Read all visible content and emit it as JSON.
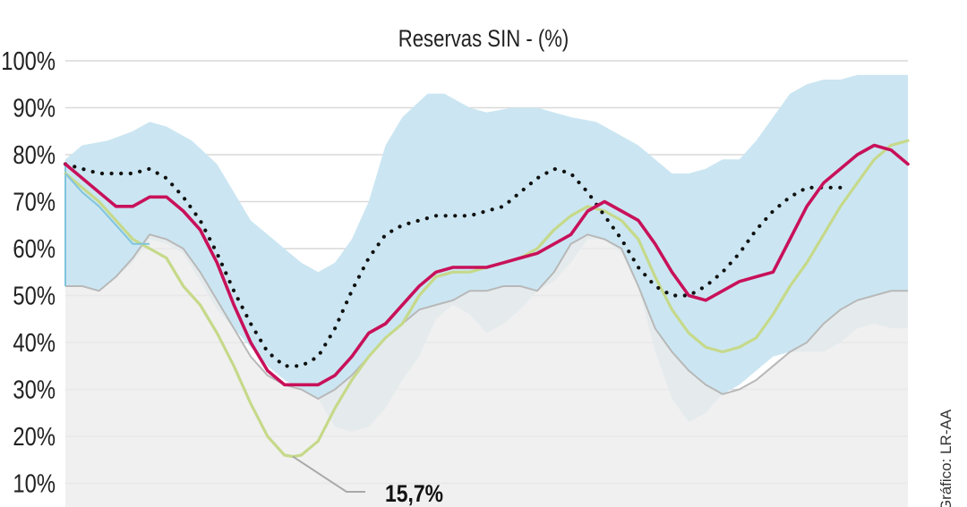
{
  "chart_data": {
    "type": "area",
    "title": "Reservas SIN - (%)",
    "xlabel": "",
    "ylabel": "",
    "ylim": [
      0,
      100
    ],
    "y_ticks": [
      10,
      20,
      30,
      40,
      50,
      60,
      70,
      80,
      90,
      100
    ],
    "y_tick_labels": [
      "10%",
      "20%",
      "30%",
      "40%",
      "50%",
      "60%",
      "70%",
      "80%",
      "90%",
      "100%"
    ],
    "grid": true,
    "x_range": [
      0,
      100
    ],
    "annotation": {
      "text": "15,7%",
      "x": 27,
      "y": 15.7
    },
    "source_note": "Gráfico: LR-AA",
    "bands": [
      {
        "role": "historical-max-min-range",
        "color": "#cbe6f2",
        "upper": [
          [
            0,
            79
          ],
          [
            2,
            82
          ],
          [
            5,
            83
          ],
          [
            8,
            85
          ],
          [
            10,
            87
          ],
          [
            12,
            86
          ],
          [
            15,
            83
          ],
          [
            18,
            78
          ],
          [
            22,
            66
          ],
          [
            26,
            60
          ],
          [
            28,
            57
          ],
          [
            30,
            55
          ],
          [
            32,
            57
          ],
          [
            34,
            62
          ],
          [
            36,
            70
          ],
          [
            38,
            82
          ],
          [
            40,
            88
          ],
          [
            43,
            93
          ],
          [
            45,
            93
          ],
          [
            48,
            90
          ],
          [
            50,
            89
          ],
          [
            53,
            90
          ],
          [
            56,
            90
          ],
          [
            58,
            89
          ],
          [
            60,
            88
          ],
          [
            63,
            87
          ],
          [
            66,
            84
          ],
          [
            68,
            82
          ],
          [
            70,
            79
          ],
          [
            72,
            76
          ],
          [
            74,
            76
          ],
          [
            76,
            77
          ],
          [
            78,
            79
          ],
          [
            80,
            79
          ],
          [
            82,
            83
          ],
          [
            84,
            88
          ],
          [
            86,
            93
          ],
          [
            88,
            95
          ],
          [
            90,
            96
          ],
          [
            92,
            96
          ],
          [
            94,
            97
          ],
          [
            96,
            97
          ],
          [
            98,
            97
          ],
          [
            100,
            97
          ]
        ],
        "lower": [
          [
            0,
            52
          ],
          [
            2,
            52
          ],
          [
            4,
            51
          ],
          [
            6,
            54
          ],
          [
            8,
            57
          ],
          [
            10,
            62
          ],
          [
            12,
            61
          ],
          [
            14,
            59
          ],
          [
            16,
            53
          ],
          [
            18,
            47
          ],
          [
            20,
            43
          ],
          [
            22,
            39
          ],
          [
            24,
            35
          ],
          [
            26,
            32
          ],
          [
            28,
            30
          ],
          [
            30,
            28
          ],
          [
            32,
            22
          ],
          [
            34,
            21
          ],
          [
            36,
            22
          ],
          [
            38,
            26
          ],
          [
            40,
            32
          ],
          [
            42,
            37
          ],
          [
            44,
            45
          ],
          [
            46,
            48
          ],
          [
            48,
            46
          ],
          [
            50,
            42
          ],
          [
            52,
            44
          ],
          [
            54,
            47
          ],
          [
            56,
            51
          ],
          [
            58,
            53
          ],
          [
            60,
            57
          ],
          [
            62,
            62
          ],
          [
            64,
            62
          ],
          [
            66,
            59
          ],
          [
            68,
            52
          ],
          [
            70,
            38
          ],
          [
            72,
            28
          ],
          [
            74,
            23
          ],
          [
            76,
            25
          ],
          [
            78,
            29
          ],
          [
            80,
            31
          ],
          [
            82,
            34
          ],
          [
            84,
            37
          ],
          [
            86,
            38
          ],
          [
            88,
            38
          ],
          [
            90,
            38
          ],
          [
            92,
            40
          ],
          [
            94,
            43
          ],
          [
            96,
            44
          ],
          [
            98,
            43
          ],
          [
            100,
            43
          ]
        ]
      },
      {
        "role": "historical-minimum",
        "color": "#ececec",
        "stroke": "#b8b8b8",
        "values": [
          [
            0,
            52
          ],
          [
            2,
            52
          ],
          [
            4,
            51
          ],
          [
            6,
            54
          ],
          [
            8,
            58
          ],
          [
            10,
            63
          ],
          [
            12,
            62
          ],
          [
            14,
            60
          ],
          [
            16,
            55
          ],
          [
            18,
            49
          ],
          [
            20,
            43
          ],
          [
            22,
            37
          ],
          [
            24,
            33
          ],
          [
            26,
            31
          ],
          [
            28,
            30
          ],
          [
            30,
            28
          ],
          [
            32,
            30
          ],
          [
            34,
            33
          ],
          [
            36,
            37
          ],
          [
            38,
            41
          ],
          [
            40,
            44
          ],
          [
            42,
            47
          ],
          [
            44,
            48
          ],
          [
            46,
            49
          ],
          [
            48,
            51
          ],
          [
            50,
            51
          ],
          [
            52,
            52
          ],
          [
            54,
            52
          ],
          [
            56,
            51
          ],
          [
            58,
            55
          ],
          [
            60,
            61
          ],
          [
            62,
            63
          ],
          [
            64,
            62
          ],
          [
            66,
            60
          ],
          [
            68,
            52
          ],
          [
            70,
            43
          ],
          [
            72,
            38
          ],
          [
            74,
            34
          ],
          [
            76,
            31
          ],
          [
            78,
            29
          ],
          [
            80,
            30
          ],
          [
            82,
            32
          ],
          [
            84,
            35
          ],
          [
            86,
            38
          ],
          [
            88,
            40
          ],
          [
            90,
            44
          ],
          [
            92,
            47
          ],
          [
            94,
            49
          ],
          [
            96,
            50
          ],
          [
            98,
            51
          ],
          [
            100,
            51
          ]
        ]
      }
    ],
    "series": [
      {
        "role": "current-year",
        "color": "#c8115a",
        "style": "solid",
        "values": [
          [
            0,
            78
          ],
          [
            2,
            75
          ],
          [
            4,
            72
          ],
          [
            6,
            69
          ],
          [
            8,
            69
          ],
          [
            10,
            71
          ],
          [
            12,
            71
          ],
          [
            14,
            68
          ],
          [
            16,
            64
          ],
          [
            18,
            57
          ],
          [
            20,
            48
          ],
          [
            22,
            40
          ],
          [
            24,
            34
          ],
          [
            26,
            31
          ],
          [
            28,
            31
          ],
          [
            30,
            31
          ],
          [
            32,
            33
          ],
          [
            34,
            37
          ],
          [
            36,
            42
          ],
          [
            38,
            44
          ],
          [
            40,
            48
          ],
          [
            42,
            52
          ],
          [
            44,
            55
          ],
          [
            46,
            56
          ],
          [
            48,
            56
          ],
          [
            50,
            56
          ],
          [
            52,
            57
          ],
          [
            54,
            58
          ],
          [
            56,
            59
          ],
          [
            58,
            61
          ],
          [
            60,
            63
          ],
          [
            62,
            68
          ],
          [
            64,
            70
          ],
          [
            66,
            68
          ],
          [
            68,
            66
          ],
          [
            70,
            61
          ],
          [
            72,
            55
          ],
          [
            74,
            50
          ],
          [
            76,
            49
          ],
          [
            78,
            51
          ],
          [
            80,
            53
          ],
          [
            82,
            54
          ],
          [
            84,
            55
          ],
          [
            86,
            62
          ],
          [
            88,
            69
          ],
          [
            90,
            74
          ],
          [
            92,
            77
          ],
          [
            94,
            80
          ],
          [
            96,
            82
          ],
          [
            98,
            81
          ],
          [
            100,
            78
          ]
        ]
      },
      {
        "role": "previous-year",
        "color": "#c6d98a",
        "style": "solid",
        "values": [
          [
            0,
            76
          ],
          [
            2,
            73
          ],
          [
            4,
            70
          ],
          [
            6,
            66
          ],
          [
            8,
            62
          ],
          [
            10,
            60
          ],
          [
            12,
            58
          ],
          [
            14,
            52
          ],
          [
            16,
            48
          ],
          [
            18,
            42
          ],
          [
            20,
            35
          ],
          [
            22,
            27
          ],
          [
            24,
            20
          ],
          [
            26,
            16
          ],
          [
            27,
            15.7
          ],
          [
            28,
            16
          ],
          [
            30,
            19
          ],
          [
            32,
            26
          ],
          [
            34,
            32
          ],
          [
            36,
            37
          ],
          [
            38,
            41
          ],
          [
            40,
            44
          ],
          [
            42,
            50
          ],
          [
            44,
            54
          ],
          [
            46,
            55
          ],
          [
            48,
            55
          ],
          [
            50,
            56
          ],
          [
            52,
            57
          ],
          [
            54,
            58
          ],
          [
            56,
            60
          ],
          [
            58,
            64
          ],
          [
            60,
            67
          ],
          [
            62,
            69
          ],
          [
            64,
            68
          ],
          [
            66,
            66
          ],
          [
            68,
            62
          ],
          [
            70,
            54
          ],
          [
            72,
            47
          ],
          [
            74,
            42
          ],
          [
            76,
            39
          ],
          [
            78,
            38
          ],
          [
            80,
            39
          ],
          [
            82,
            41
          ],
          [
            84,
            46
          ],
          [
            86,
            52
          ],
          [
            88,
            57
          ],
          [
            90,
            63
          ],
          [
            92,
            69
          ],
          [
            94,
            74
          ],
          [
            96,
            79
          ],
          [
            98,
            82
          ],
          [
            100,
            83
          ]
        ]
      },
      {
        "role": "historical-average",
        "color": "#111111",
        "style": "dotted",
        "values": [
          [
            0,
            78
          ],
          [
            2,
            77
          ],
          [
            4,
            76
          ],
          [
            6,
            76
          ],
          [
            8,
            76
          ],
          [
            10,
            77
          ],
          [
            12,
            75
          ],
          [
            14,
            71
          ],
          [
            16,
            66
          ],
          [
            18,
            59
          ],
          [
            20,
            51
          ],
          [
            22,
            44
          ],
          [
            24,
            38
          ],
          [
            26,
            35
          ],
          [
            28,
            35
          ],
          [
            30,
            37
          ],
          [
            32,
            43
          ],
          [
            34,
            51
          ],
          [
            36,
            58
          ],
          [
            38,
            63
          ],
          [
            40,
            65
          ],
          [
            42,
            66
          ],
          [
            44,
            67
          ],
          [
            46,
            67
          ],
          [
            48,
            67
          ],
          [
            50,
            68
          ],
          [
            52,
            69
          ],
          [
            54,
            72
          ],
          [
            56,
            75
          ],
          [
            58,
            77
          ],
          [
            60,
            76
          ],
          [
            62,
            72
          ],
          [
            64,
            67
          ],
          [
            66,
            62
          ],
          [
            68,
            56
          ],
          [
            70,
            52
          ],
          [
            72,
            50
          ],
          [
            74,
            50
          ],
          [
            76,
            52
          ],
          [
            78,
            55
          ],
          [
            80,
            59
          ],
          [
            82,
            64
          ],
          [
            84,
            68
          ],
          [
            86,
            71
          ],
          [
            88,
            73
          ],
          [
            90,
            73
          ],
          [
            92,
            73
          ]
        ]
      }
    ]
  }
}
